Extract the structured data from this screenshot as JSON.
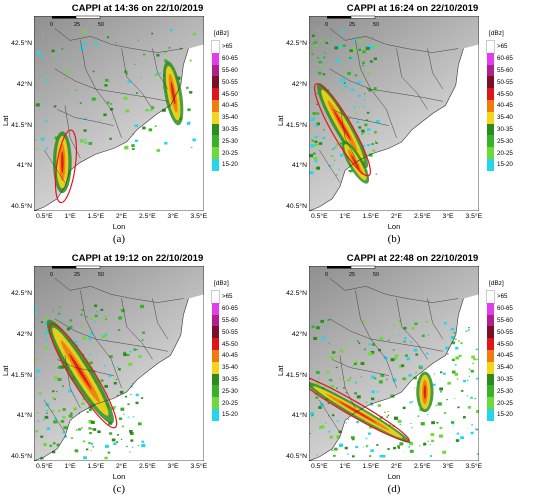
{
  "panels": [
    {
      "title": "CAPPI at 14:36 on 22/10/2019",
      "label": "(a)",
      "storm": "a"
    },
    {
      "title": "CAPPI at 16:24 on 22/10/2019",
      "label": "(b)",
      "storm": "b"
    },
    {
      "title": "CAPPI at 19:12 on 22/10/2019",
      "label": "(c)",
      "storm": "c"
    },
    {
      "title": "CAPPI at 22:48 on 22/10/2019",
      "label": "(d)",
      "storm": "d"
    }
  ],
  "axes": {
    "xlabel": "Lon",
    "ylabel": "Lat",
    "xticks": [
      "0.5°E",
      "1°E",
      "1.5°E",
      "2°E",
      "2.5°E",
      "3°E",
      "3.5°E"
    ],
    "yticks": [
      "42.5°N",
      "42°N",
      "41.5°N",
      "41°N",
      "40.5°N"
    ]
  },
  "scalebar": {
    "labels": [
      "0",
      "25",
      "50"
    ]
  },
  "legend": {
    "unit": "[dBz]",
    "items": [
      {
        "label": ">65",
        "color": "#ffffff"
      },
      {
        "label": "60-65",
        "color": "#e23cf0"
      },
      {
        "label": "55-60",
        "color": "#b0208a"
      },
      {
        "label": "50-55",
        "color": "#7a0f2a"
      },
      {
        "label": "45-50",
        "color": "#e0151a"
      },
      {
        "label": "40-45",
        "color": "#f07c10"
      },
      {
        "label": "35-40",
        "color": "#f7d41c"
      },
      {
        "label": "30-35",
        "color": "#2a8c1e"
      },
      {
        "label": "25-30",
        "color": "#38b228"
      },
      {
        "label": "20-25",
        "color": "#6fd93a"
      },
      {
        "label": "15-20",
        "color": "#25d6e8"
      }
    ]
  },
  "colors": {
    "ellipse": "#e8141c",
    "terrain_high": "#8f8f8f",
    "terrain_low": "#e6e6e6",
    "sea": "#ffffff",
    "border": "#333333"
  }
}
